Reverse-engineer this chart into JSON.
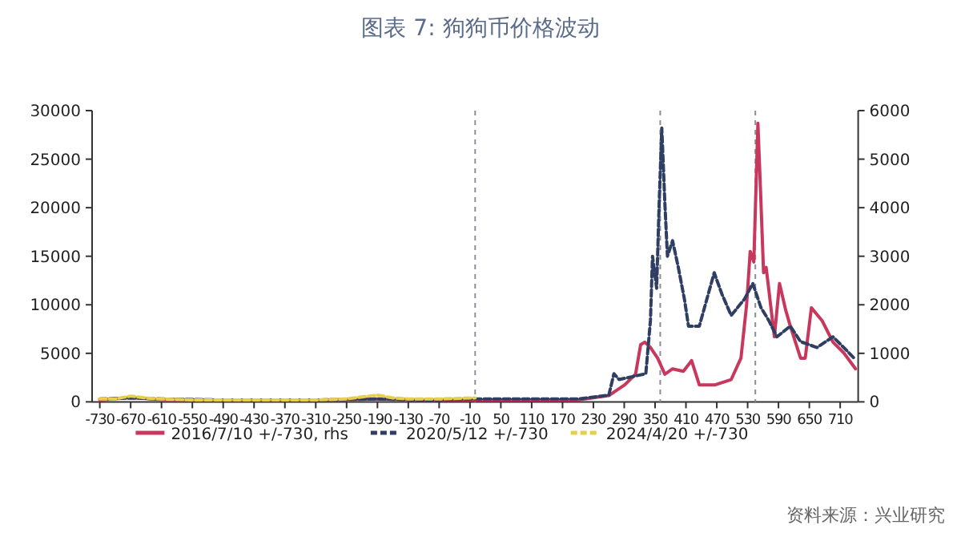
{
  "chart_data": {
    "type": "line",
    "title": "图表 7:  狗狗币价格波动",
    "annotations": [
      "资料来源：兴业研究"
    ],
    "xlim": [
      -745,
      745
    ],
    "xticks": [
      -730,
      -670,
      -610,
      -550,
      -490,
      -430,
      -370,
      -310,
      -250,
      -190,
      -130,
      -70,
      -10,
      50,
      110,
      170,
      230,
      290,
      350,
      410,
      470,
      530,
      590,
      650,
      710
    ],
    "ylim": [
      0,
      30000
    ],
    "yticks": [
      0,
      5000,
      10000,
      15000,
      20000,
      25000,
      30000
    ],
    "y2lim": [
      0,
      6000
    ],
    "y2ticks": [
      0,
      1000,
      2000,
      3000,
      4000,
      5000,
      6000
    ],
    "legend": "bottom",
    "grid": false,
    "ref_lines": [
      {
        "axis": "x",
        "value": 0,
        "color": "#8a8f9a",
        "line_style": "dashed"
      },
      {
        "axis": "x",
        "value": 360,
        "color": "#8a8f9a",
        "line_style": "dashed"
      },
      {
        "axis": "x",
        "value": 545,
        "color": "#8a8f9a",
        "line_style": "dashed"
      }
    ],
    "series": [
      {
        "name": "2016/7/10 +/-730, rhs",
        "axis": "y2",
        "color": "#c8385c",
        "line_style": "solid",
        "x": [
          -730,
          -670,
          -610,
          -500,
          -400,
          -300,
          -190,
          -100,
          0,
          100,
          200,
          260,
          291,
          312,
          322,
          330,
          341,
          355,
          369,
          384,
          405,
          421,
          436,
          467,
          498,
          517,
          528,
          535,
          542,
          550,
          556,
          561,
          566,
          571,
          582,
          592,
          604,
          613,
          633,
          642,
          654,
          675,
          696,
          717,
          740
        ],
        "values": [
          40,
          90,
          50,
          40,
          40,
          40,
          60,
          40,
          40,
          40,
          40,
          130,
          350,
          570,
          1180,
          1230,
          1120,
          900,
          570,
          680,
          630,
          850,
          350,
          350,
          460,
          900,
          2000,
          3100,
          2880,
          5740,
          4090,
          2660,
          2770,
          2330,
          1340,
          2440,
          1890,
          1560,
          900,
          900,
          1940,
          1670,
          1230,
          1010,
          680
        ]
      },
      {
        "name": "2020/5/12 +/-730",
        "axis": "y",
        "color": "#2f3f63",
        "line_style": "dashed",
        "x": [
          -730,
          -670,
          -610,
          -500,
          -400,
          -300,
          -190,
          -100,
          0,
          100,
          200,
          260,
          270,
          280,
          306,
          332,
          341,
          345,
          353,
          358,
          363,
          369,
          374,
          384,
          395,
          407,
          415,
          436,
          465,
          480,
          498,
          524,
          540,
          556,
          571,
          587,
          613,
          633,
          665,
          696,
          717,
          737
        ],
        "values": [
          300,
          400,
          300,
          200,
          200,
          200,
          300,
          200,
          300,
          300,
          300,
          700,
          2900,
          2300,
          2600,
          2900,
          8400,
          15000,
          11700,
          20500,
          28200,
          20500,
          15000,
          16600,
          13900,
          10600,
          7800,
          7800,
          13300,
          11100,
          8900,
          10600,
          12200,
          9700,
          8400,
          6700,
          7800,
          6200,
          5600,
          6700,
          5600,
          4500
        ]
      },
      {
        "name": "2024/4/20 +/-730",
        "axis": "y",
        "color": "#e6cf4a",
        "line_style": "dashed",
        "x": [
          -730,
          -700,
          -670,
          -640,
          -610,
          -550,
          -490,
          -430,
          -370,
          -310,
          -250,
          -190,
          -160,
          -130,
          -70,
          -10,
          0
        ],
        "values": [
          300,
          300,
          600,
          400,
          300,
          200,
          200,
          200,
          200,
          200,
          300,
          700,
          400,
          300,
          300,
          400,
          400
        ]
      }
    ]
  }
}
